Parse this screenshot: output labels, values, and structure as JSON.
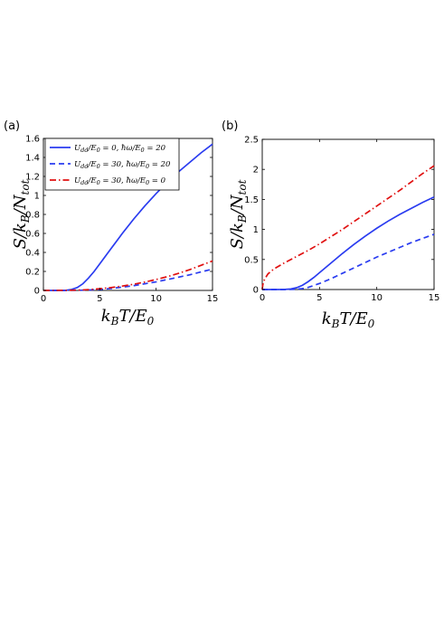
{
  "chart_data": [
    {
      "type": "line",
      "panel": "(a)",
      "xlabel": "k_B T / E_0",
      "ylabel": "S / k_B / N_tot",
      "xlim": [
        0,
        15
      ],
      "ylim": [
        0,
        1.6
      ],
      "xticks": [
        "0",
        "5",
        "10",
        "15"
      ],
      "yticks": [
        "0",
        "0.2",
        "0.4",
        "0.6",
        "0.8",
        "1",
        "1.2",
        "1.4",
        "1.6"
      ],
      "grid": false,
      "legend": "top-left",
      "series": [
        {
          "name": "U_dd/E_0 = 0, ħω/E_0 = 20",
          "style": "solid",
          "color": "#2a3cf0",
          "x": [
            0,
            1,
            2,
            2.5,
            3,
            3.5,
            4,
            4.5,
            5,
            6,
            7,
            8,
            9,
            10,
            11,
            12,
            13,
            14,
            15
          ],
          "y": [
            0,
            0,
            0.002,
            0.01,
            0.03,
            0.07,
            0.13,
            0.2,
            0.28,
            0.44,
            0.6,
            0.75,
            0.89,
            1.02,
            1.14,
            1.25,
            1.35,
            1.45,
            1.54
          ]
        },
        {
          "name": "U_dd/E_0 = 30, ħω/E_0 = 20",
          "style": "dashed",
          "color": "#2a3cf0",
          "x": [
            0,
            2,
            3,
            4,
            5,
            6,
            7,
            8,
            9,
            10,
            11,
            12,
            13,
            14,
            15
          ],
          "y": [
            0,
            0,
            0.001,
            0.004,
            0.01,
            0.02,
            0.035,
            0.05,
            0.07,
            0.09,
            0.115,
            0.14,
            0.165,
            0.195,
            0.225
          ]
        },
        {
          "name": "U_dd/E_0 = 30, ħω/E_0 = 0",
          "style": "dashdot",
          "color": "#e01010",
          "x": [
            0,
            2,
            3,
            4,
            5,
            6,
            7,
            8,
            9,
            10,
            11,
            12,
            13,
            14,
            15
          ],
          "y": [
            0,
            0.001,
            0.003,
            0.008,
            0.018,
            0.03,
            0.046,
            0.065,
            0.088,
            0.115,
            0.145,
            0.18,
            0.22,
            0.265,
            0.31
          ]
        }
      ],
      "legend_labels": [
        {
          "main": "U",
          "sub": "dd",
          "rest1": "/E",
          "sub2": "0",
          "rest2": " = 0, ħω/E",
          "sub3": "0",
          "rest3": " = 20"
        },
        {
          "main": "U",
          "sub": "dd",
          "rest1": "/E",
          "sub2": "0",
          "rest2": " = 30, ħω/E",
          "sub3": "0",
          "rest3": " = 20"
        },
        {
          "main": "U",
          "sub": "dd",
          "rest1": "/E",
          "sub2": "0",
          "rest2": " = 30, ħω/E",
          "sub3": "0",
          "rest3": " = 0"
        }
      ]
    },
    {
      "type": "line",
      "panel": "(b)",
      "xlabel": "k_B T / E_0",
      "ylabel": "S / k_B / N_tot",
      "xlim": [
        0,
        15
      ],
      "ylim": [
        0,
        2.5
      ],
      "xticks": [
        "0",
        "5",
        "10",
        "15"
      ],
      "yticks": [
        "0",
        "0.5",
        "1",
        "1.5",
        "2",
        "2.5"
      ],
      "grid": false,
      "series": [
        {
          "style": "solid",
          "color": "#2a3cf0",
          "x": [
            0,
            1,
            2,
            2.5,
            3,
            3.5,
            4,
            4.5,
            5,
            6,
            7,
            8,
            9,
            10,
            11,
            12,
            13,
            14,
            15
          ],
          "y": [
            0,
            0,
            0.002,
            0.01,
            0.03,
            0.07,
            0.13,
            0.2,
            0.28,
            0.44,
            0.6,
            0.75,
            0.89,
            1.02,
            1.14,
            1.25,
            1.35,
            1.45,
            1.54
          ]
        },
        {
          "style": "dashed",
          "color": "#2a3cf0",
          "x": [
            0,
            2,
            3,
            3.5,
            4,
            5,
            6,
            7,
            8,
            9,
            10,
            11,
            12,
            13,
            14,
            15
          ],
          "y": [
            0,
            0,
            0.005,
            0.015,
            0.035,
            0.1,
            0.18,
            0.27,
            0.36,
            0.45,
            0.54,
            0.62,
            0.7,
            0.78,
            0.85,
            0.92
          ]
        },
        {
          "style": "dashdot",
          "color": "#e01010",
          "x": [
            0,
            0.05,
            0.2,
            0.5,
            1,
            2,
            3,
            4,
            5,
            6,
            7,
            8,
            9,
            10,
            11,
            12,
            13,
            14,
            15
          ],
          "y": [
            0,
            0.08,
            0.17,
            0.26,
            0.34,
            0.45,
            0.55,
            0.65,
            0.76,
            0.88,
            1.0,
            1.13,
            1.26,
            1.39,
            1.52,
            1.65,
            1.79,
            1.93,
            2.06
          ]
        }
      ]
    }
  ]
}
